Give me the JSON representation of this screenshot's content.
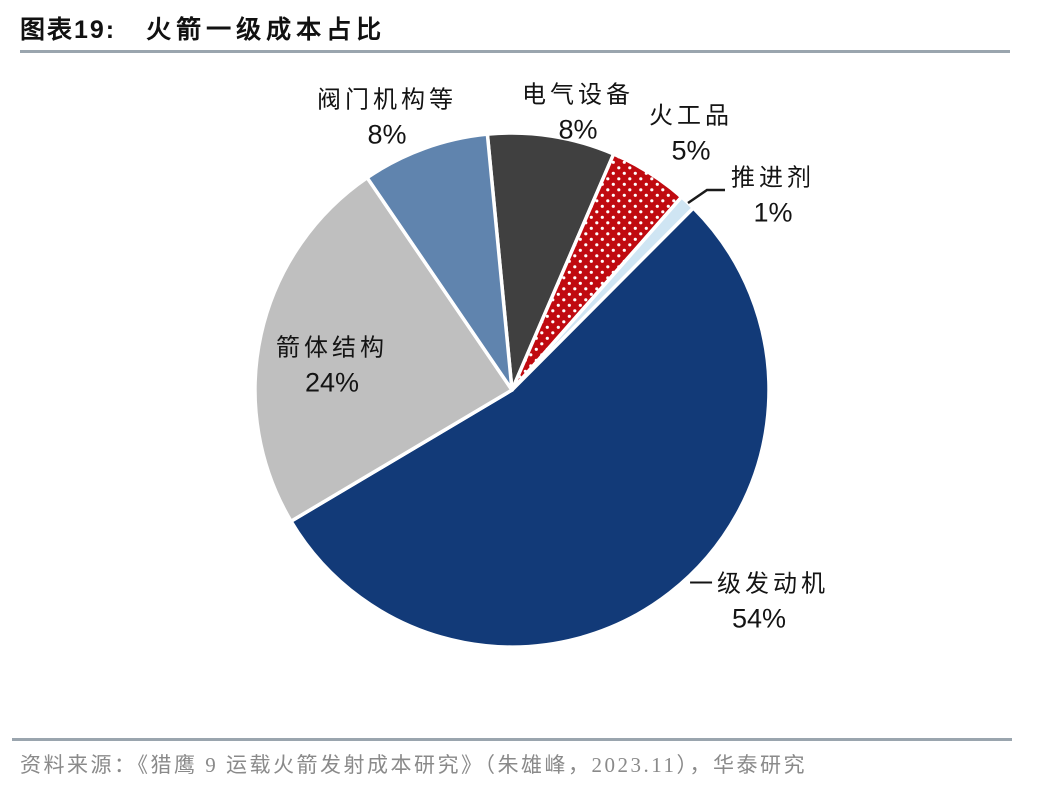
{
  "header": {
    "figure_label": "图表19:",
    "title": "火箭一级成本占比"
  },
  "chart_data": {
    "type": "pie",
    "title": "火箭一级成本占比",
    "unit": "%",
    "direction": "clockwise",
    "start_angle_deg": 354.5,
    "legend_position": "none",
    "slices": [
      {
        "label": "电气设备",
        "value": 8,
        "display": "8%",
        "color": "#404040",
        "pattern": "solid"
      },
      {
        "label": "火工品",
        "value": 5,
        "display": "5%",
        "color": "#c00a10",
        "pattern": "white-dots"
      },
      {
        "label": "推进剂",
        "value": 1,
        "display": "1%",
        "color": "#cfe5f3",
        "pattern": "solid"
      },
      {
        "label": "一级发动机",
        "value": 54,
        "display": "54%",
        "color": "#123a78",
        "pattern": "solid"
      },
      {
        "label": "箭体结构",
        "value": 24,
        "display": "24%",
        "color": "#bfbfbf",
        "pattern": "solid"
      },
      {
        "label": "阀门机构等",
        "value": 8,
        "display": "8%",
        "color": "#6084ae",
        "pattern": "solid"
      }
    ],
    "gap_color": "#ffffff",
    "label_color": "#141414"
  },
  "footer": {
    "source": "资料来源：《猎鹰 9 运载火箭发射成本研究》（朱雄峰，2023.11），华泰研究"
  }
}
